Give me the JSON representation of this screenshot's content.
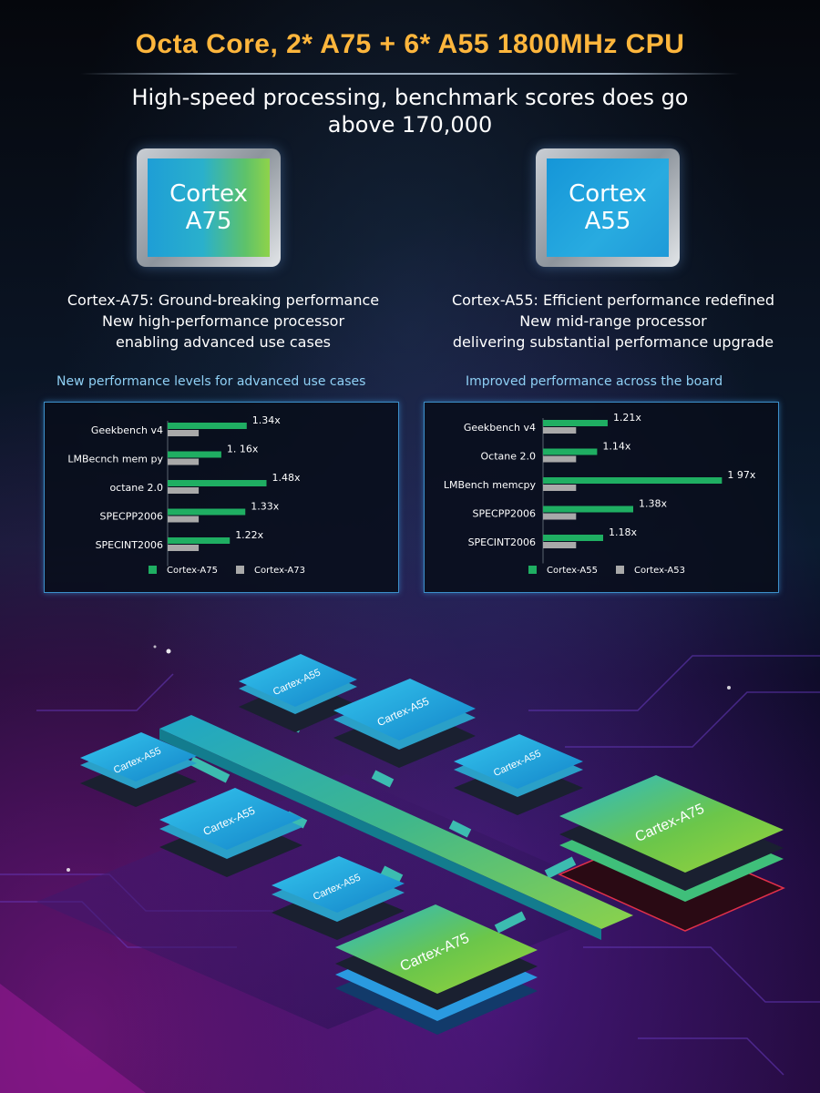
{
  "header": {
    "title": "Octa Core, 2* A75 + 6* A55 1800MHz CPU",
    "subtitle_line1": "High-speed processing, benchmark scores does go",
    "subtitle_line2": "above 170,000"
  },
  "chips": {
    "a75": {
      "line1": "Cortex",
      "line2": "A75"
    },
    "a55": {
      "line1": "Cortex",
      "line2": "A55"
    }
  },
  "descriptions": {
    "a75": [
      "Cortex-A75: Ground-breaking performance",
      "New high-performance processor",
      "enabling advanced use cases"
    ],
    "a55": [
      "Cortex-A55: Efficient performance redefined",
      "New mid-range processor",
      "delivering substantial performance upgrade"
    ]
  },
  "captions": {
    "a75": "New performance levels for advanced use cases",
    "a55": "Improved performance across the board"
  },
  "colors": {
    "title": "#ffb63c",
    "new_core_bar": "#1fae62",
    "baseline_bar": "#a9a9a9",
    "panel_border": "#3c8fc9",
    "caption": "#8fd0f5"
  },
  "chart_data": [
    {
      "type": "bar",
      "orientation": "horizontal",
      "categories": [
        "Geekbench v4",
        "LMBecnch mem py",
        "octane 2.0",
        "SPECPP2006",
        "SPECINT2006"
      ],
      "series": [
        {
          "name": "Cortex-A75",
          "values": [
            1.34,
            1.16,
            1.48,
            1.33,
            1.22
          ],
          "labels": [
            "1.34x",
            "1. 16x",
            "1.48x",
            "1.33x",
            "1.22x"
          ]
        },
        {
          "name": "Cortex-A73",
          "values": [
            1,
            1,
            1,
            1,
            1
          ]
        }
      ],
      "legend": "bottom",
      "grid": false
    },
    {
      "type": "bar",
      "orientation": "horizontal",
      "categories": [
        "Geekbench v4",
        "Octane 2.0",
        "LMBench memcpy",
        "SPECPP2006",
        "SPECINT2006"
      ],
      "series": [
        {
          "name": "Cortex-A55",
          "values": [
            1.21,
            1.14,
            1.97,
            1.38,
            1.18
          ],
          "labels": [
            "1.21x",
            "1.14x",
            "1 97x",
            "1.38x",
            "1.18x"
          ]
        },
        {
          "name": "Cortex-A53",
          "values": [
            1,
            1,
            1,
            1,
            1
          ]
        }
      ],
      "legend": "bottom",
      "grid": false
    }
  ],
  "diagram": {
    "small_chip_label": "Cartex-A55",
    "big_chip_label": "Cartex-A75"
  }
}
